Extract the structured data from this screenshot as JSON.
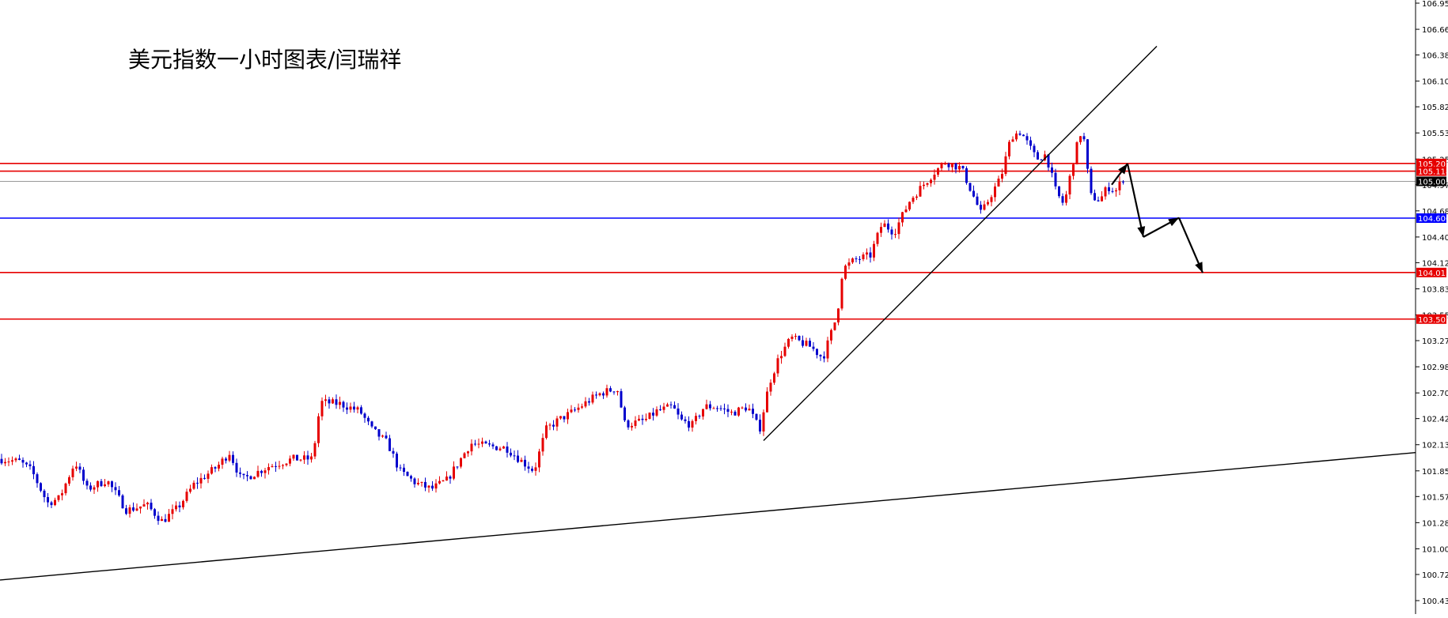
{
  "chart_data": {
    "type": "candlestick",
    "title": "美元指数一小时图表/闫瑞祥",
    "y_axis": {
      "ticks": [
        "106.950",
        "106.665",
        "106.385",
        "106.100",
        "105.820",
        "105.535",
        "105.250",
        "104.970",
        "104.685",
        "104.400",
        "104.120",
        "103.835",
        "103.550",
        "103.270",
        "102.985",
        "102.700",
        "102.420",
        "102.135",
        "101.850",
        "101.570",
        "101.285",
        "101.000",
        "100.720",
        "100.435"
      ],
      "range": [
        100.4,
        106.98
      ],
      "position": "right"
    },
    "horizontal_levels": [
      {
        "value": 105.202,
        "label": "105.202",
        "color": "#e60000"
      },
      {
        "value": 105.118,
        "label": "105.118",
        "color": "#e60000"
      },
      {
        "value": 105.007,
        "label": "105.007",
        "color": "#999999",
        "current_price": true
      },
      {
        "value": 104.606,
        "label": "104.606",
        "color": "#0000ff"
      },
      {
        "value": 104.013,
        "label": "104.013",
        "color": "#e60000"
      },
      {
        "value": 103.505,
        "label": "103.505",
        "color": "#e60000"
      }
    ],
    "trend_lines": [
      {
        "name": "rising-support",
        "from": [
          965,
          102.18
        ],
        "to": [
          1462,
          106.48
        ]
      },
      {
        "name": "long-term-support",
        "from": [
          0,
          100.66
        ],
        "to": [
          1790,
          102.05
        ]
      }
    ],
    "projected_path": [
      [
        1405,
        104.97
      ],
      [
        1425,
        105.2
      ],
      [
        1445,
        104.4
      ],
      [
        1490,
        104.61
      ],
      [
        1520,
        104.01
      ]
    ],
    "bar_index_range": [
      0,
      1420
    ],
    "up_color": "#e60000",
    "down_color": "#0000cc",
    "close_anchors": [
      [
        0,
        101.98
      ],
      [
        25,
        101.95
      ],
      [
        40,
        101.85
      ],
      [
        60,
        101.5
      ],
      [
        75,
        101.55
      ],
      [
        95,
        101.95
      ],
      [
        110,
        101.65
      ],
      [
        135,
        101.75
      ],
      [
        160,
        101.42
      ],
      [
        185,
        101.48
      ],
      [
        205,
        101.3
      ],
      [
        225,
        101.45
      ],
      [
        245,
        101.7
      ],
      [
        275,
        101.9
      ],
      [
        290,
        102.05
      ],
      [
        305,
        101.75
      ],
      [
        340,
        101.9
      ],
      [
        370,
        101.98
      ],
      [
        395,
        101.98
      ],
      [
        405,
        102.6
      ],
      [
        430,
        102.58
      ],
      [
        455,
        102.5
      ],
      [
        470,
        102.3
      ],
      [
        490,
        102.15
      ],
      [
        505,
        101.85
      ],
      [
        525,
        101.72
      ],
      [
        545,
        101.65
      ],
      [
        565,
        101.75
      ],
      [
        580,
        101.95
      ],
      [
        595,
        102.15
      ],
      [
        615,
        102.12
      ],
      [
        640,
        102.1
      ],
      [
        660,
        101.95
      ],
      [
        675,
        101.85
      ],
      [
        690,
        102.3
      ],
      [
        705,
        102.4
      ],
      [
        725,
        102.5
      ],
      [
        745,
        102.62
      ],
      [
        760,
        102.7
      ],
      [
        780,
        102.75
      ],
      [
        790,
        102.35
      ],
      [
        815,
        102.4
      ],
      [
        830,
        102.5
      ],
      [
        850,
        102.55
      ],
      [
        860,
        102.4
      ],
      [
        875,
        102.35
      ],
      [
        890,
        102.55
      ],
      [
        905,
        102.55
      ],
      [
        925,
        102.48
      ],
      [
        945,
        102.55
      ],
      [
        960,
        102.3
      ],
      [
        972,
        102.8
      ],
      [
        985,
        103.1
      ],
      [
        1000,
        103.3
      ],
      [
        1025,
        103.2
      ],
      [
        1040,
        103.08
      ],
      [
        1058,
        103.55
      ],
      [
        1065,
        104.05
      ],
      [
        1080,
        104.15
      ],
      [
        1100,
        104.2
      ],
      [
        1115,
        104.55
      ],
      [
        1130,
        104.45
      ],
      [
        1150,
        104.8
      ],
      [
        1165,
        104.95
      ],
      [
        1180,
        105.1
      ],
      [
        1195,
        105.22
      ],
      [
        1215,
        105.15
      ],
      [
        1230,
        104.85
      ],
      [
        1240,
        104.65
      ],
      [
        1255,
        104.9
      ],
      [
        1265,
        105.05
      ],
      [
        1278,
        105.5
      ],
      [
        1290,
        105.55
      ],
      [
        1300,
        105.4
      ],
      [
        1310,
        105.25
      ],
      [
        1322,
        105.3
      ],
      [
        1335,
        104.88
      ],
      [
        1345,
        104.75
      ],
      [
        1358,
        105.3
      ],
      [
        1368,
        105.6
      ],
      [
        1378,
        104.85
      ],
      [
        1390,
        104.8
      ],
      [
        1400,
        104.95
      ],
      [
        1410,
        104.9
      ],
      [
        1420,
        105.05
      ]
    ]
  }
}
